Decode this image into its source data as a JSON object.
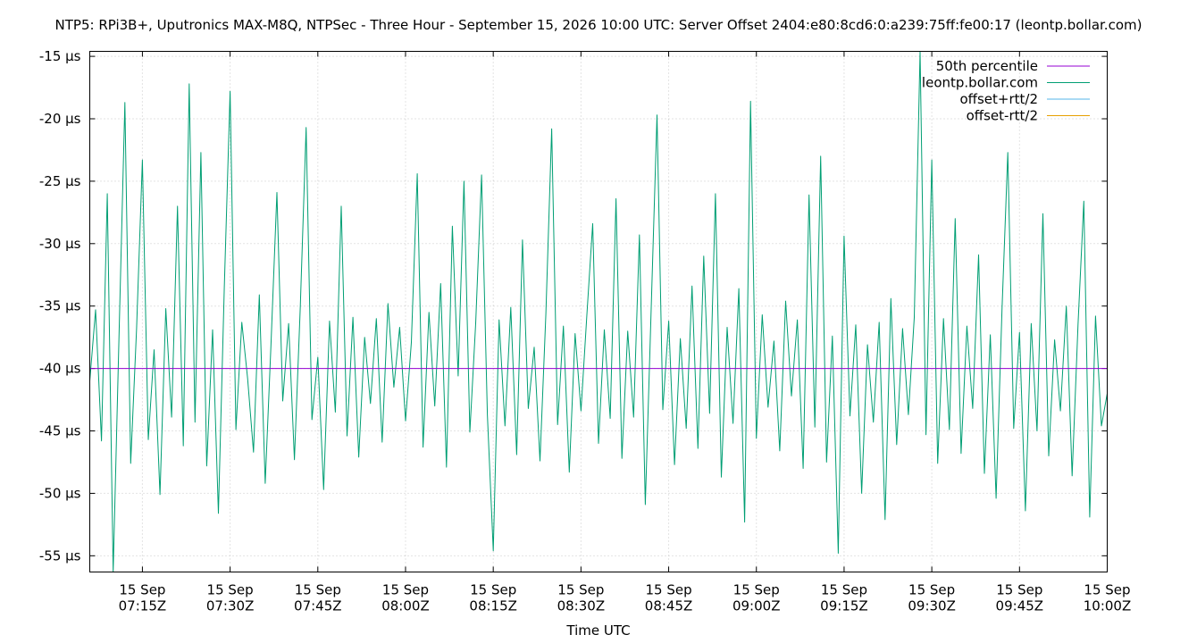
{
  "chart_data": {
    "type": "line",
    "title": "NTP5: RPi3B+, Uputronics MAX-M8Q, NTPSec - Three Hour - September 15, 2026 10:00 UTC: Server Offset 2404:e80:8cd6:0:a239:75ff:fe00:17 (leontp.bollar.com)",
    "xlabel": "Time UTC",
    "ylabel": "",
    "y_unit": "µs",
    "x_range": [
      "2026-09-15T07:06Z",
      "2026-09-15T10:00Z"
    ],
    "ylim": [
      -56.3,
      -14.6
    ],
    "y_ticks": [
      {
        "value": -15,
        "label": "-15 µs"
      },
      {
        "value": -20,
        "label": "-20 µs"
      },
      {
        "value": -25,
        "label": "-25 µs"
      },
      {
        "value": -30,
        "label": "-30 µs"
      },
      {
        "value": -35,
        "label": "-35 µs"
      },
      {
        "value": -40,
        "label": "-40 µs"
      },
      {
        "value": -45,
        "label": "-45 µs"
      },
      {
        "value": -50,
        "label": "-50 µs"
      },
      {
        "value": -55,
        "label": "-55 µs"
      }
    ],
    "x_ticks": [
      {
        "time": "2026-09-15T07:15Z",
        "line1": "15 Sep",
        "line2": "07:15Z"
      },
      {
        "time": "2026-09-15T07:30Z",
        "line1": "15 Sep",
        "line2": "07:30Z"
      },
      {
        "time": "2026-09-15T07:45Z",
        "line1": "15 Sep",
        "line2": "07:45Z"
      },
      {
        "time": "2026-09-15T08:00Z",
        "line1": "15 Sep",
        "line2": "08:00Z"
      },
      {
        "time": "2026-09-15T08:15Z",
        "line1": "15 Sep",
        "line2": "08:15Z"
      },
      {
        "time": "2026-09-15T08:30Z",
        "line1": "15 Sep",
        "line2": "08:30Z"
      },
      {
        "time": "2026-09-15T08:45Z",
        "line1": "15 Sep",
        "line2": "08:45Z"
      },
      {
        "time": "2026-09-15T09:00Z",
        "line1": "15 Sep",
        "line2": "09:00Z"
      },
      {
        "time": "2026-09-15T09:15Z",
        "line1": "15 Sep",
        "line2": "09:15Z"
      },
      {
        "time": "2026-09-15T09:30Z",
        "line1": "15 Sep",
        "line2": "09:30Z"
      },
      {
        "time": "2026-09-15T09:45Z",
        "line1": "15 Sep",
        "line2": "09:45Z"
      },
      {
        "time": "2026-09-15T10:00Z",
        "line1": "15 Sep",
        "line2": "10:00Z"
      }
    ],
    "grid": true,
    "legend_position": "top-right",
    "series": [
      {
        "name": "50th percentile",
        "color": "#9400d3",
        "points": [
          [
            "2026-09-15T07:06Z",
            -40.0
          ],
          [
            "2026-09-15T10:00Z",
            -40.0
          ]
        ]
      },
      {
        "name": "leontp.bollar.com",
        "color": "#009e73",
        "points": [
          [
            "2026-09-15T07:06Z",
            -41.0
          ],
          [
            "2026-09-15T07:07Z",
            -35.3
          ],
          [
            "2026-09-15T07:08Z",
            -45.8
          ],
          [
            "2026-09-15T07:09Z",
            -26.0
          ],
          [
            "2026-09-15T07:10Z",
            -56.3
          ],
          [
            "2026-09-15T07:11Z",
            -37.5
          ],
          [
            "2026-09-15T07:12Z",
            -18.7
          ],
          [
            "2026-09-15T07:13Z",
            -47.6
          ],
          [
            "2026-09-15T07:14Z",
            -36.8
          ],
          [
            "2026-09-15T07:15Z",
            -23.3
          ],
          [
            "2026-09-15T07:16Z",
            -45.7
          ],
          [
            "2026-09-15T07:17Z",
            -38.5
          ],
          [
            "2026-09-15T07:18Z",
            -50.1
          ],
          [
            "2026-09-15T07:19Z",
            -35.2
          ],
          [
            "2026-09-15T07:20Z",
            -43.9
          ],
          [
            "2026-09-15T07:21Z",
            -27.0
          ],
          [
            "2026-09-15T07:22Z",
            -46.2
          ],
          [
            "2026-09-15T07:23Z",
            -17.2
          ],
          [
            "2026-09-15T07:24Z",
            -44.3
          ],
          [
            "2026-09-15T07:25Z",
            -22.7
          ],
          [
            "2026-09-15T07:26Z",
            -47.8
          ],
          [
            "2026-09-15T07:27Z",
            -36.9
          ],
          [
            "2026-09-15T07:28Z",
            -51.6
          ],
          [
            "2026-09-15T07:29Z",
            -33.5
          ],
          [
            "2026-09-15T07:30Z",
            -17.8
          ],
          [
            "2026-09-15T07:31Z",
            -44.9
          ],
          [
            "2026-09-15T07:32Z",
            -36.3
          ],
          [
            "2026-09-15T07:33Z",
            -40.8
          ],
          [
            "2026-09-15T07:34Z",
            -46.7
          ],
          [
            "2026-09-15T07:35Z",
            -34.1
          ],
          [
            "2026-09-15T07:36Z",
            -49.2
          ],
          [
            "2026-09-15T07:37Z",
            -38.0
          ],
          [
            "2026-09-15T07:38Z",
            -25.9
          ],
          [
            "2026-09-15T07:39Z",
            -42.6
          ],
          [
            "2026-09-15T07:40Z",
            -36.4
          ],
          [
            "2026-09-15T07:41Z",
            -47.3
          ],
          [
            "2026-09-15T07:42Z",
            -35.0
          ],
          [
            "2026-09-15T07:43Z",
            -20.7
          ],
          [
            "2026-09-15T07:44Z",
            -44.1
          ],
          [
            "2026-09-15T07:45Z",
            -39.1
          ],
          [
            "2026-09-15T07:46Z",
            -49.7
          ],
          [
            "2026-09-15T07:47Z",
            -36.2
          ],
          [
            "2026-09-15T07:48Z",
            -43.5
          ],
          [
            "2026-09-15T07:49Z",
            -27.0
          ],
          [
            "2026-09-15T07:50Z",
            -45.4
          ],
          [
            "2026-09-15T07:51Z",
            -35.9
          ],
          [
            "2026-09-15T07:52Z",
            -47.1
          ],
          [
            "2026-09-15T07:53Z",
            -37.5
          ],
          [
            "2026-09-15T07:54Z",
            -42.8
          ],
          [
            "2026-09-15T07:55Z",
            -36.0
          ],
          [
            "2026-09-15T07:56Z",
            -45.9
          ],
          [
            "2026-09-15T07:57Z",
            -34.8
          ],
          [
            "2026-09-15T07:58Z",
            -41.5
          ],
          [
            "2026-09-15T07:59Z",
            -36.7
          ],
          [
            "2026-09-15T08:00Z",
            -44.2
          ],
          [
            "2026-09-15T08:01Z",
            -37.9
          ],
          [
            "2026-09-15T08:02Z",
            -24.4
          ],
          [
            "2026-09-15T08:03Z",
            -46.3
          ],
          [
            "2026-09-15T08:04Z",
            -35.5
          ],
          [
            "2026-09-15T08:05Z",
            -43.0
          ],
          [
            "2026-09-15T08:06Z",
            -33.2
          ],
          [
            "2026-09-15T08:07Z",
            -47.9
          ],
          [
            "2026-09-15T08:08Z",
            -28.6
          ],
          [
            "2026-09-15T08:09Z",
            -40.6
          ],
          [
            "2026-09-15T08:10Z",
            -25.0
          ],
          [
            "2026-09-15T08:11Z",
            -45.1
          ],
          [
            "2026-09-15T08:12Z",
            -36.4
          ],
          [
            "2026-09-15T08:13Z",
            -24.5
          ],
          [
            "2026-09-15T08:14Z",
            -43.7
          ],
          [
            "2026-09-15T08:15Z",
            -54.6
          ],
          [
            "2026-09-15T08:16Z",
            -36.1
          ],
          [
            "2026-09-15T08:17Z",
            -44.6
          ],
          [
            "2026-09-15T08:18Z",
            -35.1
          ],
          [
            "2026-09-15T08:19Z",
            -46.9
          ],
          [
            "2026-09-15T08:20Z",
            -29.7
          ],
          [
            "2026-09-15T08:21Z",
            -43.2
          ],
          [
            "2026-09-15T08:22Z",
            -38.3
          ],
          [
            "2026-09-15T08:23Z",
            -47.4
          ],
          [
            "2026-09-15T08:24Z",
            -35.6
          ],
          [
            "2026-09-15T08:25Z",
            -20.8
          ],
          [
            "2026-09-15T08:26Z",
            -44.5
          ],
          [
            "2026-09-15T08:27Z",
            -36.6
          ],
          [
            "2026-09-15T08:28Z",
            -48.3
          ],
          [
            "2026-09-15T08:29Z",
            -37.2
          ],
          [
            "2026-09-15T08:30Z",
            -43.4
          ],
          [
            "2026-09-15T08:31Z",
            -35.8
          ],
          [
            "2026-09-15T08:32Z",
            -28.4
          ],
          [
            "2026-09-15T08:33Z",
            -46.0
          ],
          [
            "2026-09-15T08:34Z",
            -36.9
          ],
          [
            "2026-09-15T08:35Z",
            -44.0
          ],
          [
            "2026-09-15T08:36Z",
            -26.4
          ],
          [
            "2026-09-15T08:37Z",
            -47.2
          ],
          [
            "2026-09-15T08:38Z",
            -37.0
          ],
          [
            "2026-09-15T08:39Z",
            -43.9
          ],
          [
            "2026-09-15T08:40Z",
            -29.3
          ],
          [
            "2026-09-15T08:41Z",
            -50.9
          ],
          [
            "2026-09-15T08:42Z",
            -35.4
          ],
          [
            "2026-09-15T08:43Z",
            -19.7
          ],
          [
            "2026-09-15T08:44Z",
            -43.3
          ],
          [
            "2026-09-15T08:45Z",
            -36.2
          ],
          [
            "2026-09-15T08:46Z",
            -47.7
          ],
          [
            "2026-09-15T08:47Z",
            -37.6
          ],
          [
            "2026-09-15T08:48Z",
            -44.8
          ],
          [
            "2026-09-15T08:49Z",
            -33.4
          ],
          [
            "2026-09-15T08:50Z",
            -46.4
          ],
          [
            "2026-09-15T08:51Z",
            -31.0
          ],
          [
            "2026-09-15T08:52Z",
            -43.6
          ],
          [
            "2026-09-15T08:53Z",
            -26.0
          ],
          [
            "2026-09-15T08:54Z",
            -48.7
          ],
          [
            "2026-09-15T08:55Z",
            -36.7
          ],
          [
            "2026-09-15T08:56Z",
            -44.4
          ],
          [
            "2026-09-15T08:57Z",
            -33.6
          ],
          [
            "2026-09-15T08:58Z",
            -52.3
          ],
          [
            "2026-09-15T08:59Z",
            -18.6
          ],
          [
            "2026-09-15T09:00Z",
            -45.6
          ],
          [
            "2026-09-15T09:01Z",
            -35.7
          ],
          [
            "2026-09-15T09:02Z",
            -43.1
          ],
          [
            "2026-09-15T09:03Z",
            -37.8
          ],
          [
            "2026-09-15T09:04Z",
            -46.6
          ],
          [
            "2026-09-15T09:05Z",
            -34.6
          ],
          [
            "2026-09-15T09:06Z",
            -42.2
          ],
          [
            "2026-09-15T09:07Z",
            -36.1
          ],
          [
            "2026-09-15T09:08Z",
            -48.0
          ],
          [
            "2026-09-15T09:09Z",
            -26.1
          ],
          [
            "2026-09-15T09:10Z",
            -44.7
          ],
          [
            "2026-09-15T09:11Z",
            -23.0
          ],
          [
            "2026-09-15T09:12Z",
            -47.5
          ],
          [
            "2026-09-15T09:13Z",
            -37.4
          ],
          [
            "2026-09-15T09:14Z",
            -54.8
          ],
          [
            "2026-09-15T09:15Z",
            -29.4
          ],
          [
            "2026-09-15T09:16Z",
            -43.8
          ],
          [
            "2026-09-15T09:17Z",
            -36.5
          ],
          [
            "2026-09-15T09:18Z",
            -50.0
          ],
          [
            "2026-09-15T09:19Z",
            -38.1
          ],
          [
            "2026-09-15T09:20Z",
            -44.3
          ],
          [
            "2026-09-15T09:21Z",
            -36.3
          ],
          [
            "2026-09-15T09:22Z",
            -52.1
          ],
          [
            "2026-09-15T09:23Z",
            -34.4
          ],
          [
            "2026-09-15T09:24Z",
            -46.1
          ],
          [
            "2026-09-15T09:25Z",
            -36.8
          ],
          [
            "2026-09-15T09:26Z",
            -43.7
          ],
          [
            "2026-09-15T09:27Z",
            -35.9
          ],
          [
            "2026-09-15T09:28Z",
            -14.6
          ],
          [
            "2026-09-15T09:29Z",
            -45.3
          ],
          [
            "2026-09-15T09:30Z",
            -23.3
          ],
          [
            "2026-09-15T09:31Z",
            -47.6
          ],
          [
            "2026-09-15T09:32Z",
            -36.0
          ],
          [
            "2026-09-15T09:33Z",
            -44.9
          ],
          [
            "2026-09-15T09:34Z",
            -28.0
          ],
          [
            "2026-09-15T09:35Z",
            -46.8
          ],
          [
            "2026-09-15T09:36Z",
            -36.6
          ],
          [
            "2026-09-15T09:37Z",
            -43.2
          ],
          [
            "2026-09-15T09:38Z",
            -30.9
          ],
          [
            "2026-09-15T09:39Z",
            -48.4
          ],
          [
            "2026-09-15T09:40Z",
            -37.3
          ],
          [
            "2026-09-15T09:41Z",
            -50.4
          ],
          [
            "2026-09-15T09:42Z",
            -35.3
          ],
          [
            "2026-09-15T09:43Z",
            -22.7
          ],
          [
            "2026-09-15T09:44Z",
            -44.8
          ],
          [
            "2026-09-15T09:45Z",
            -37.1
          ],
          [
            "2026-09-15T09:46Z",
            -51.4
          ],
          [
            "2026-09-15T09:47Z",
            -36.4
          ],
          [
            "2026-09-15T09:48Z",
            -45.0
          ],
          [
            "2026-09-15T09:49Z",
            -27.6
          ],
          [
            "2026-09-15T09:50Z",
            -47.0
          ],
          [
            "2026-09-15T09:51Z",
            -37.7
          ],
          [
            "2026-09-15T09:52Z",
            -43.4
          ],
          [
            "2026-09-15T09:53Z",
            -35.0
          ],
          [
            "2026-09-15T09:54Z",
            -48.6
          ],
          [
            "2026-09-15T09:55Z",
            -36.5
          ],
          [
            "2026-09-15T09:56Z",
            -26.6
          ],
          [
            "2026-09-15T09:57Z",
            -51.9
          ],
          [
            "2026-09-15T09:58Z",
            -35.8
          ],
          [
            "2026-09-15T09:59Z",
            -44.6
          ],
          [
            "2026-09-15T10:00Z",
            -42.0
          ]
        ]
      },
      {
        "name": "offset+rtt/2",
        "color": "#56b4e9",
        "points": []
      },
      {
        "name": "offset-rtt/2",
        "color": "#e69f00",
        "points": []
      }
    ]
  }
}
